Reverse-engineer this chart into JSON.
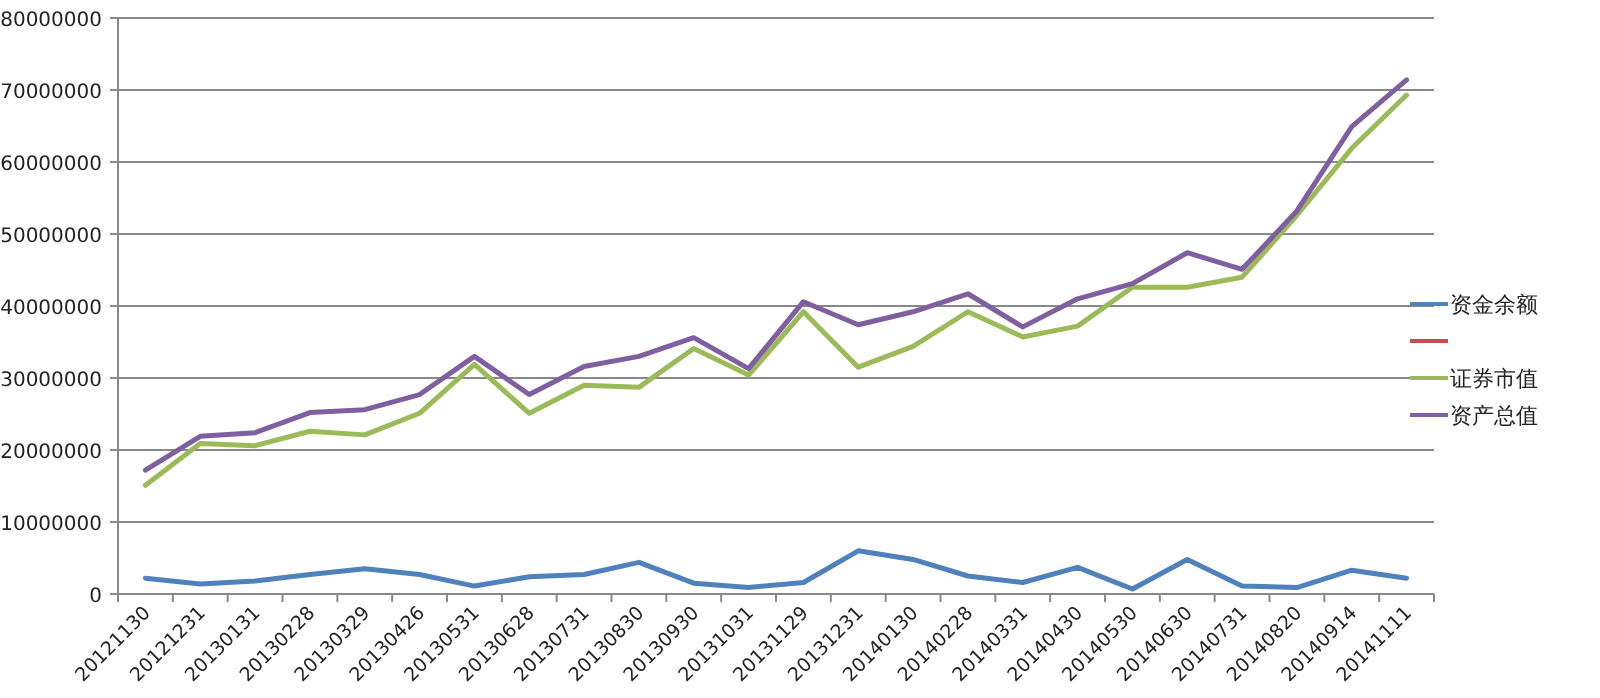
{
  "chart_data": {
    "type": "line",
    "categories": [
      "20121130",
      "20121231",
      "20130131",
      "20130228",
      "20130329",
      "20130426",
      "20130531",
      "20130628",
      "20130731",
      "20130830",
      "20130930",
      "20131031",
      "20131129",
      "20131231",
      "20140130",
      "20140228",
      "20140331",
      "20140430",
      "20140530",
      "20140630",
      "20140731",
      "20140820",
      "20140914",
      "20141111"
    ],
    "series": [
      {
        "name": "资金余额",
        "color": "#4f81bd",
        "values": [
          2200000,
          1400000,
          1800000,
          2700000,
          3500000,
          2700000,
          1100000,
          2400000,
          2700000,
          4400000,
          1500000,
          900000,
          1600000,
          6000000,
          4800000,
          2500000,
          1600000,
          3700000,
          700000,
          4800000,
          1100000,
          900000,
          3300000,
          2200000
        ]
      },
      {
        "color": "#c0504d",
        "values": [
          null,
          null,
          null,
          null,
          null,
          null,
          null,
          null,
          null,
          null,
          null,
          null,
          null,
          null,
          null,
          null,
          null,
          null,
          null,
          null,
          null,
          null,
          null,
          null
        ]
      },
      {
        "name": "证券市值",
        "color": "#9bbb59",
        "values": [
          15100000,
          20900000,
          20600000,
          22600000,
          22100000,
          25100000,
          31900000,
          25100000,
          29000000,
          28700000,
          34100000,
          30400000,
          39200000,
          31500000,
          34400000,
          39200000,
          35700000,
          37200000,
          42600000,
          42600000,
          44000000,
          52600000,
          61900000,
          69300000
        ]
      },
      {
        "name": "资产总值",
        "color": "#7f5f9f",
        "values": [
          17200000,
          21900000,
          22400000,
          25200000,
          25600000,
          27700000,
          33000000,
          27700000,
          31600000,
          33000000,
          35600000,
          31300000,
          40600000,
          37400000,
          39200000,
          41700000,
          37100000,
          41000000,
          43100000,
          47400000,
          45100000,
          53200000,
          64900000,
          71400000
        ]
      }
    ],
    "ylim": [
      0,
      80000000
    ],
    "yticks": [
      0,
      10000000,
      20000000,
      30000000,
      40000000,
      50000000,
      60000000,
      70000000,
      80000000
    ],
    "grid": "y",
    "legend": "right",
    "marker": "none",
    "line_style": "solid"
  }
}
